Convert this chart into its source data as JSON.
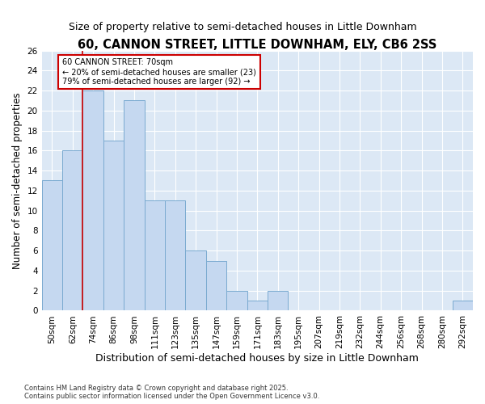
{
  "title": "60, CANNON STREET, LITTLE DOWNHAM, ELY, CB6 2SS",
  "subtitle": "Size of property relative to semi-detached houses in Little Downham",
  "xlabel": "Distribution of semi-detached houses by size in Little Downham",
  "ylabel": "Number of semi-detached properties",
  "categories": [
    "50sqm",
    "62sqm",
    "74sqm",
    "86sqm",
    "98sqm",
    "111sqm",
    "123sqm",
    "135sqm",
    "147sqm",
    "159sqm",
    "171sqm",
    "183sqm",
    "195sqm",
    "207sqm",
    "219sqm",
    "232sqm",
    "244sqm",
    "256sqm",
    "268sqm",
    "280sqm",
    "292sqm"
  ],
  "values": [
    13,
    16,
    22,
    17,
    21,
    11,
    11,
    6,
    5,
    2,
    1,
    2,
    0,
    0,
    0,
    0,
    0,
    0,
    0,
    0,
    1
  ],
  "bar_color": "#c5d8f0",
  "bar_edge_color": "#7aaad0",
  "vline_color": "#cc0000",
  "vline_x": 1.5,
  "annotation_title": "60 CANNON STREET: 70sqm",
  "annotation_line1": "← 20% of semi-detached houses are smaller (23)",
  "annotation_line2": "79% of semi-detached houses are larger (92) →",
  "annotation_box_color": "#cc0000",
  "ylim": [
    0,
    26
  ],
  "yticks": [
    0,
    2,
    4,
    6,
    8,
    10,
    12,
    14,
    16,
    18,
    20,
    22,
    24,
    26
  ],
  "plot_bg_color": "#dce8f5",
  "fig_bg_color": "#ffffff",
  "grid_color": "#ffffff",
  "footer_line1": "Contains HM Land Registry data © Crown copyright and database right 2025.",
  "footer_line2": "Contains public sector information licensed under the Open Government Licence v3.0.",
  "title_fontsize": 10.5,
  "subtitle_fontsize": 9,
  "tick_fontsize": 7.5,
  "ylabel_fontsize": 8.5,
  "xlabel_fontsize": 9
}
